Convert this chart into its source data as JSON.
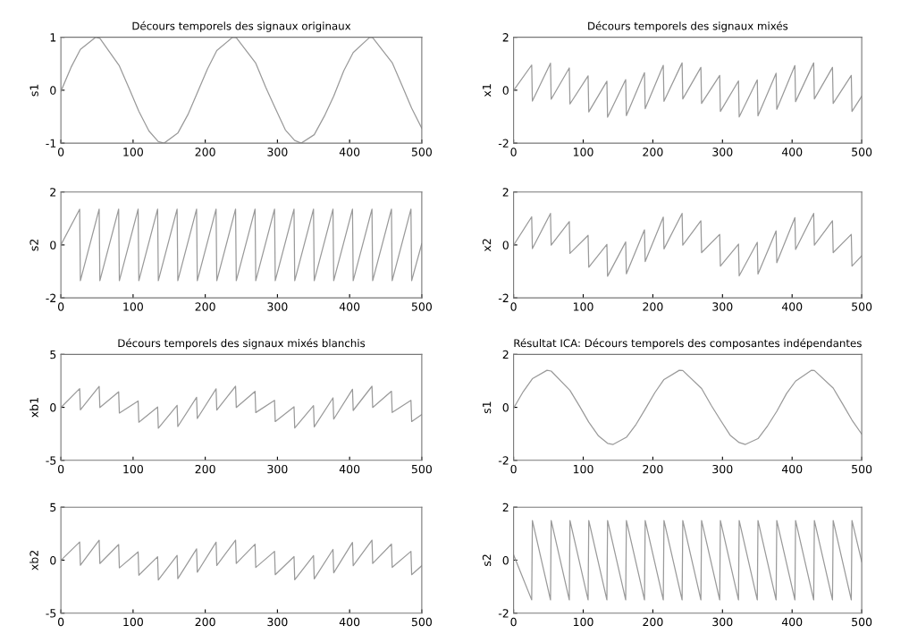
{
  "chart_data": [
    {
      "type": "line",
      "title": "Décours temporels des signaux originaux",
      "ylabel": "s1",
      "xlim": [
        0,
        500
      ],
      "xticks": [
        0,
        100,
        200,
        300,
        400,
        500
      ],
      "ylim": [
        -1,
        1
      ],
      "yticks": [
        -1,
        0,
        1
      ],
      "grid": false,
      "x": [
        0,
        14,
        27,
        48,
        54,
        81,
        95,
        108,
        122,
        135,
        143,
        162,
        176,
        189,
        203,
        216,
        238,
        243,
        270,
        284,
        297,
        311,
        324,
        333,
        351,
        365,
        378,
        392,
        405,
        428,
        432,
        459,
        473,
        486,
        500
      ],
      "series": [
        {
          "color": "#9a9a9a",
          "values": [
            -0.02,
            0.43,
            0.77,
            1,
            0.98,
            0.46,
            0.02,
            -0.4,
            -0.77,
            -0.97,
            -1,
            -0.81,
            -0.46,
            -0.05,
            0.4,
            0.75,
            1,
            0.99,
            0.51,
            0.05,
            -0.34,
            -0.75,
            -0.95,
            -1,
            -0.84,
            -0.49,
            -0.11,
            0.37,
            0.71,
            1,
            0.99,
            0.52,
            0.08,
            -0.34,
            -0.72
          ]
        }
      ]
    },
    {
      "type": "line",
      "ylabel": "s2",
      "xlim": [
        0,
        500
      ],
      "xticks": [
        0,
        100,
        200,
        300,
        400,
        500
      ],
      "ylim": [
        -2,
        2
      ],
      "yticks": [
        -2,
        0,
        2
      ],
      "grid": false,
      "x": [
        0,
        26,
        27,
        53,
        54,
        80,
        81,
        107,
        108,
        134,
        135,
        161,
        162,
        188,
        189,
        215,
        216,
        242,
        243,
        269,
        270,
        296,
        297,
        323,
        324,
        350,
        351,
        377,
        378,
        404,
        405,
        431,
        432,
        458,
        459,
        485,
        486,
        500
      ],
      "series": [
        {
          "color": "#9a9a9a",
          "values": [
            0,
            1.35,
            -1.35,
            1.35,
            -1.35,
            1.35,
            -1.35,
            1.35,
            -1.35,
            1.35,
            -1.35,
            1.35,
            -1.35,
            1.35,
            -1.35,
            1.35,
            -1.35,
            1.35,
            -1.35,
            1.35,
            -1.35,
            1.35,
            -1.35,
            1.35,
            -1.35,
            1.35,
            -1.35,
            1.35,
            -1.35,
            1.35,
            -1.35,
            1.35,
            -1.35,
            1.35,
            -1.35,
            1.35,
            -1.35,
            0.05
          ]
        }
      ]
    },
    {
      "type": "line",
      "title": "Décours temporels des signaux mixés",
      "ylabel": "x1",
      "xlim": [
        0,
        500
      ],
      "xticks": [
        0,
        100,
        200,
        300,
        400,
        500
      ],
      "ylim": [
        -2,
        2
      ],
      "yticks": [
        -2,
        0,
        2
      ],
      "grid": false,
      "x": [
        0,
        26,
        27,
        53,
        54,
        80,
        81,
        107,
        108,
        134,
        135,
        161,
        162,
        188,
        189,
        215,
        216,
        242,
        243,
        269,
        270,
        296,
        297,
        323,
        324,
        350,
        351,
        377,
        378,
        404,
        405,
        431,
        432,
        458,
        459,
        485,
        486,
        500
      ],
      "series": [
        {
          "color": "#9a9a9a",
          "values": [
            -0.01,
            0.95,
            -0.41,
            1.02,
            -0.34,
            0.84,
            -0.52,
            0.54,
            -0.82,
            0.34,
            -1.02,
            0.4,
            -0.96,
            0.66,
            -0.7,
            0.94,
            -0.42,
            1.03,
            -0.33,
            0.86,
            -0.5,
            0.56,
            -0.8,
            0.35,
            -1.01,
            0.39,
            -0.97,
            0.64,
            -0.72,
            0.93,
            -0.43,
            1.03,
            -0.33,
            0.86,
            -0.5,
            0.56,
            -0.8,
            -0.23
          ]
        }
      ]
    },
    {
      "type": "line",
      "ylabel": "x2",
      "xlim": [
        0,
        500
      ],
      "xticks": [
        0,
        100,
        200,
        300,
        400,
        500
      ],
      "ylim": [
        -2,
        2
      ],
      "yticks": [
        -2,
        0,
        2
      ],
      "grid": false,
      "x": [
        0,
        26,
        27,
        53,
        54,
        80,
        81,
        107,
        108,
        134,
        135,
        161,
        162,
        188,
        189,
        215,
        216,
        242,
        243,
        269,
        270,
        296,
        297,
        323,
        324,
        350,
        351,
        377,
        378,
        404,
        405,
        431,
        432,
        458,
        459,
        485,
        486,
        500
      ],
      "series": [
        {
          "color": "#9a9a9a",
          "values": [
            -0.01,
            1.06,
            -0.14,
            1.19,
            -0.01,
            0.88,
            -0.32,
            0.36,
            -0.84,
            0.02,
            -1.18,
            0.11,
            -1.09,
            0.57,
            -0.63,
            1.05,
            -0.15,
            1.19,
            -0.01,
            0.91,
            -0.29,
            0.4,
            -0.8,
            0.03,
            -1.17,
            0.1,
            -1.1,
            0.53,
            -0.67,
            1.03,
            -0.17,
            1.19,
            -0.01,
            0.91,
            -0.29,
            0.4,
            -0.8,
            -0.41
          ]
        }
      ]
    },
    {
      "type": "line",
      "title": "Décours temporels des signaux mixés blanchis",
      "ylabel": "xb1",
      "xlim": [
        0,
        500
      ],
      "xticks": [
        0,
        100,
        200,
        300,
        400,
        500
      ],
      "ylim": [
        -5,
        5
      ],
      "yticks": [
        -5,
        0,
        5
      ],
      "grid": false,
      "x": [
        0,
        26,
        27,
        53,
        54,
        80,
        81,
        107,
        108,
        134,
        135,
        161,
        162,
        188,
        189,
        215,
        216,
        242,
        243,
        269,
        270,
        296,
        297,
        323,
        324,
        350,
        351,
        377,
        378,
        404,
        405,
        431,
        432,
        458,
        459,
        485,
        486,
        500
      ],
      "series": [
        {
          "color": "#9a9a9a",
          "values": [
            -0.02,
            1.77,
            -0.23,
            1.98,
            -0.02,
            1.46,
            -0.54,
            0.6,
            -1.4,
            0.03,
            -1.97,
            0.19,
            -1.81,
            0.95,
            -1.05,
            1.75,
            -0.25,
            1.99,
            -0.01,
            1.51,
            -0.49,
            0.66,
            -1.34,
            0.05,
            -1.95,
            0.16,
            -1.84,
            0.89,
            -1.11,
            1.71,
            -0.29,
            1.99,
            -0.01,
            1.52,
            -0.48,
            0.66,
            -1.34,
            -0.68
          ]
        }
      ]
    },
    {
      "type": "line",
      "ylabel": "xb2",
      "xlim": [
        0,
        500
      ],
      "xticks": [
        0,
        100,
        200,
        300,
        400,
        500
      ],
      "ylim": [
        -5,
        5
      ],
      "yticks": [
        -5,
        0,
        5
      ],
      "grid": false,
      "x": [
        0,
        26,
        27,
        53,
        54,
        80,
        81,
        107,
        108,
        134,
        135,
        161,
        162,
        188,
        189,
        215,
        216,
        242,
        243,
        269,
        270,
        296,
        297,
        323,
        324,
        350,
        351,
        377,
        378,
        404,
        405,
        431,
        432,
        458,
        459,
        485,
        486,
        500
      ],
      "series": [
        {
          "color": "#9a9a9a",
          "values": [
            -0.02,
            1.72,
            -0.48,
            1.88,
            -0.32,
            1.47,
            -0.73,
            0.78,
            -1.42,
            0.32,
            -1.88,
            0.45,
            -1.75,
            1.06,
            -1.14,
            1.7,
            -0.5,
            1.89,
            -0.31,
            1.51,
            -0.69,
            0.83,
            -1.37,
            0.34,
            -1.86,
            0.43,
            -1.77,
            1.01,
            -1.19,
            1.67,
            -0.53,
            1.89,
            -0.31,
            1.52,
            -0.68,
            0.83,
            -1.37,
            -0.53
          ]
        }
      ]
    },
    {
      "type": "line",
      "title": "Résultat ICA: Décours temporels des composantes indépendantes",
      "ylabel": "s1",
      "xlim": [
        0,
        500
      ],
      "xticks": [
        0,
        100,
        200,
        300,
        400,
        500
      ],
      "ylim": [
        -2,
        2
      ],
      "yticks": [
        -2,
        0,
        2
      ],
      "grid": false,
      "x": [
        0,
        14,
        27,
        48,
        54,
        81,
        95,
        108,
        122,
        135,
        143,
        162,
        176,
        189,
        203,
        216,
        238,
        243,
        270,
        284,
        297,
        311,
        324,
        333,
        351,
        365,
        378,
        392,
        405,
        428,
        432,
        459,
        473,
        486,
        500
      ],
      "series": [
        {
          "color": "#9a9a9a",
          "values": [
            -0.03,
            0.6,
            1.08,
            1.4,
            1.37,
            0.64,
            0.03,
            -0.56,
            -1.08,
            -1.36,
            -1.4,
            -1.13,
            -0.64,
            -0.07,
            0.56,
            1.05,
            1.4,
            1.39,
            0.71,
            0.07,
            -0.48,
            -1.05,
            -1.33,
            -1.4,
            -1.18,
            -0.69,
            -0.15,
            0.52,
            0.99,
            1.4,
            1.39,
            0.73,
            0.11,
            -0.48,
            -1.01
          ]
        }
      ]
    },
    {
      "type": "line",
      "ylabel": "s2",
      "xlim": [
        0,
        500
      ],
      "xticks": [
        0,
        100,
        200,
        300,
        400,
        500
      ],
      "ylim": [
        -2,
        2
      ],
      "yticks": [
        -2,
        0,
        2
      ],
      "grid": false,
      "x": [
        0,
        26,
        27,
        53,
        54,
        80,
        81,
        107,
        108,
        134,
        135,
        161,
        162,
        188,
        189,
        215,
        216,
        242,
        243,
        269,
        270,
        296,
        297,
        323,
        324,
        350,
        351,
        377,
        378,
        404,
        405,
        431,
        432,
        458,
        459,
        485,
        486,
        500
      ],
      "series": [
        {
          "color": "#9a9a9a",
          "values": [
            0.2,
            -1.5,
            1.5,
            -1.5,
            1.5,
            -1.5,
            1.5,
            -1.5,
            1.5,
            -1.5,
            1.5,
            -1.5,
            1.5,
            -1.5,
            1.5,
            -1.5,
            1.5,
            -1.5,
            1.5,
            -1.5,
            1.5,
            -1.5,
            1.5,
            -1.5,
            1.5,
            -1.5,
            1.5,
            -1.5,
            1.5,
            -1.5,
            1.5,
            -1.5,
            1.5,
            -1.5,
            1.5,
            -1.5,
            1.5,
            -0.06
          ]
        }
      ]
    }
  ]
}
